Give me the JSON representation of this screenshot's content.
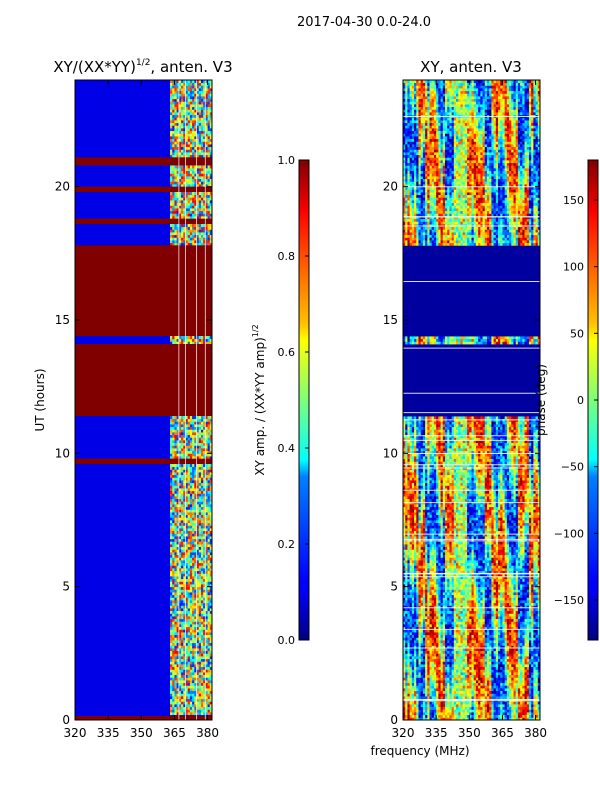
{
  "figure_title": "2017-04-30 0.0-24.0",
  "left_panel": {
    "title": "XY/(XX*YY)",
    "title_exp": "1/2",
    "title_tail": ", anten. V3"
  },
  "right_panel": {
    "title": "XY, anten. V3"
  },
  "ylabel": "UT (hours)",
  "xlabel": "frequency (MHz)",
  "cbar1_label": "XY amp. / (XX*YY amp)",
  "cbar1_label_exp": "1/2",
  "cbar2_label": "phase (deg)",
  "chart_data": [
    {
      "type": "heatmap",
      "name": "normalized-amplitude",
      "title": "XY/(XX*YY)^1/2, anten. V3",
      "xlabel": "",
      "ylabel": "UT (hours)",
      "xlim": [
        320,
        382
      ],
      "ylim": [
        0,
        24
      ],
      "x_ticks": [
        320,
        335,
        350,
        365,
        380
      ],
      "y_ticks": [
        0,
        5,
        10,
        15,
        20
      ],
      "x_tick_labels": [
        "320",
        "335",
        "350",
        "365",
        "380"
      ],
      "y_tick_labels": [
        "0",
        "5",
        "10",
        "15",
        "20"
      ],
      "colormap": "jet",
      "color_range": [
        0.0,
        1.0
      ],
      "saturated_bands_hours": [
        [
          0.0,
          0.15
        ],
        [
          9.6,
          9.8
        ],
        [
          11.4,
          14.1
        ],
        [
          14.4,
          17.8
        ],
        [
          18.6,
          18.8
        ],
        [
          19.8,
          20.0
        ],
        [
          20.8,
          21.1
        ]
      ],
      "active_freq_range_MHz": [
        363,
        382
      ]
    },
    {
      "type": "heatmap",
      "name": "phase",
      "title": "XY, anten. V3",
      "xlabel": "frequency (MHz)",
      "ylabel": "",
      "xlim": [
        320,
        382
      ],
      "ylim": [
        0,
        24
      ],
      "x_ticks": [
        320,
        335,
        350,
        365,
        380
      ],
      "y_ticks": [
        0,
        5,
        10,
        15,
        20
      ],
      "x_tick_labels": [
        "320",
        "335",
        "350",
        "365",
        "380"
      ],
      "y_tick_labels": [
        "0",
        "5",
        "10",
        "15",
        "20"
      ],
      "colormap": "jet",
      "color_range": [
        -180,
        180
      ],
      "flat_bands_hours": [
        [
          11.4,
          14.1
        ],
        [
          14.4,
          17.8
        ]
      ]
    },
    {
      "type": "colorbar",
      "name": "amplitude-colorbar",
      "range": [
        0.0,
        1.0
      ],
      "ticks": [
        0.0,
        0.2,
        0.4,
        0.6,
        0.8,
        1.0
      ],
      "tick_labels": [
        "0.0",
        "0.2",
        "0.4",
        "0.6",
        "0.8",
        "1.0"
      ],
      "label": "XY amp. / (XX*YY amp)^1/2"
    },
    {
      "type": "colorbar",
      "name": "phase-colorbar",
      "range": [
        -180,
        180
      ],
      "ticks": [
        -150,
        -100,
        -50,
        0,
        50,
        100,
        150
      ],
      "tick_labels": [
        "−150",
        "−100",
        "−50",
        "0",
        "50",
        "100",
        "150"
      ],
      "label": "phase (deg)"
    }
  ]
}
